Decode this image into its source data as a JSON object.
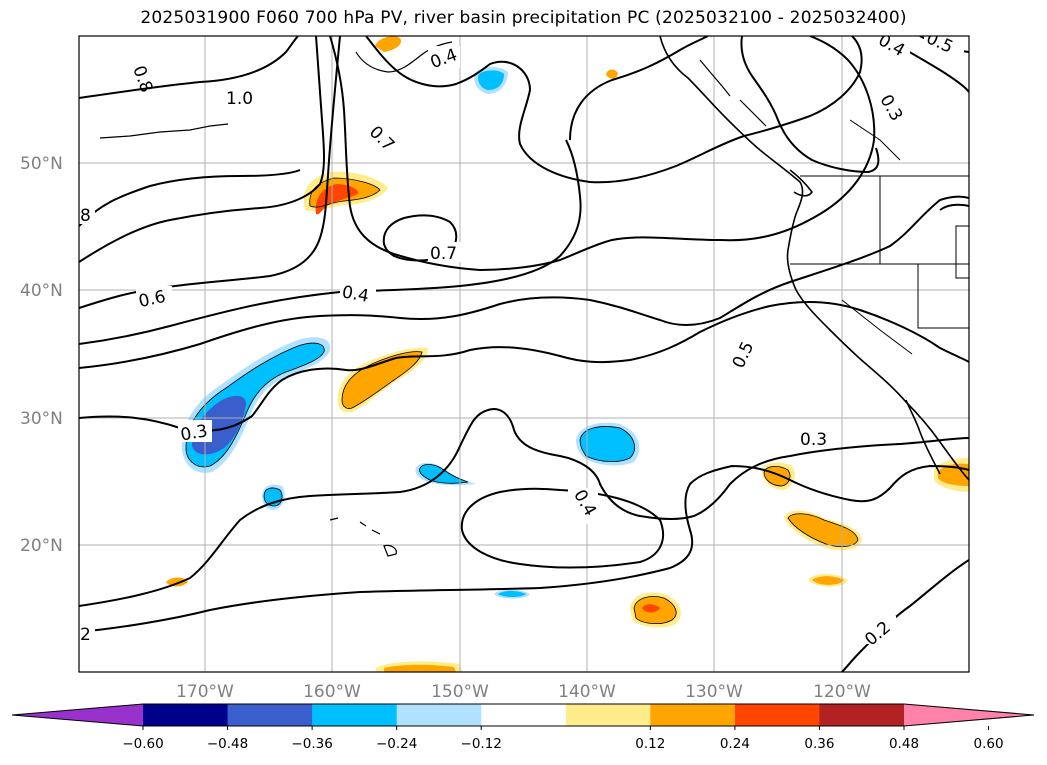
{
  "title": "2025031900 F060 700 hPa PV, river basin precipitation PC (2025032100 - 2025032400)",
  "map": {
    "lat_labels": [
      "50°N",
      "40°N",
      "30°N",
      "20°N"
    ],
    "lon_labels": [
      "170°W",
      "160°W",
      "150°W",
      "140°W",
      "130°W",
      "120°W"
    ],
    "contour_labels": [
      "0.8",
      "1.0",
      "0.4",
      "0.5",
      "0.4",
      "0.3",
      "0.7",
      "8",
      "0.7",
      "0.6",
      "0.4",
      "0.5",
      "0.3",
      "0.3",
      "0.4",
      "0.2",
      "2"
    ],
    "gridlines": true
  },
  "colorbar": {
    "ticks": [
      "−0.60",
      "−0.48",
      "−0.36",
      "−0.24",
      "−0.12",
      "0.12",
      "0.24",
      "0.36",
      "0.48",
      "0.60"
    ],
    "colors": [
      "#9932cc",
      "#00008b",
      "#3a5fcd",
      "#00bfff",
      "#b0e2ff",
      "#ffffff",
      "#ffec8b",
      "#ffa500",
      "#ff4500",
      "#b22222",
      "#ff82ab"
    ]
  }
}
